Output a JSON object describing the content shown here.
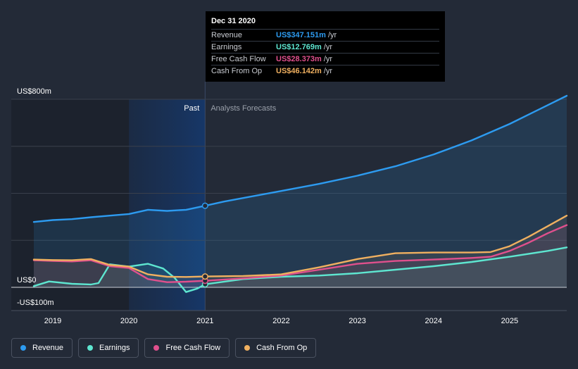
{
  "tooltip": {
    "date": "Dec 31 2020",
    "rows": [
      {
        "name": "Revenue",
        "value": "US$347.151m",
        "unit": "/yr",
        "color": "#2d9bf0"
      },
      {
        "name": "Earnings",
        "value": "US$12.769m",
        "unit": "/yr",
        "color": "#5ee6d0"
      },
      {
        "name": "Free Cash Flow",
        "value": "US$28.373m",
        "unit": "/yr",
        "color": "#e0508d"
      },
      {
        "name": "Cash From Op",
        "value": "US$46.142m",
        "unit": "/yr",
        "color": "#f0b060"
      }
    ]
  },
  "legend": [
    {
      "label": "Revenue",
      "color": "#2d9bf0"
    },
    {
      "label": "Earnings",
      "color": "#5ee6d0"
    },
    {
      "label": "Free Cash Flow",
      "color": "#e0508d"
    },
    {
      "label": "Cash From Op",
      "color": "#f0b060"
    }
  ],
  "chart_data": {
    "type": "line",
    "past_label": "Past",
    "forecast_label": "Analysts Forecasts",
    "y_labels": [
      "US$800m",
      "US$0",
      "-US$100m"
    ],
    "ylim": [
      -100,
      800
    ],
    "xlim": [
      2018.75,
      2025.75
    ],
    "x_ticks": [
      "2019",
      "2020",
      "2021",
      "2022",
      "2023",
      "2024",
      "2025"
    ],
    "x_tick_values": [
      2019,
      2020,
      2021,
      2022,
      2023,
      2024,
      2025
    ],
    "past_end": 2021.0,
    "highlight_start": 2020.0,
    "grid": true,
    "series": [
      {
        "name": "Revenue",
        "color": "#2d9bf0",
        "points": [
          [
            2018.75,
            278
          ],
          [
            2019.0,
            286
          ],
          [
            2019.25,
            290
          ],
          [
            2019.5,
            298
          ],
          [
            2019.75,
            305
          ],
          [
            2020.0,
            312
          ],
          [
            2020.25,
            330
          ],
          [
            2020.5,
            325
          ],
          [
            2020.75,
            330
          ],
          [
            2021.0,
            347
          ],
          [
            2021.25,
            365
          ],
          [
            2021.5,
            380
          ],
          [
            2021.75,
            395
          ],
          [
            2022.0,
            410
          ],
          [
            2022.5,
            440
          ],
          [
            2023.0,
            475
          ],
          [
            2023.5,
            515
          ],
          [
            2024.0,
            565
          ],
          [
            2024.5,
            625
          ],
          [
            2025.0,
            695
          ],
          [
            2025.5,
            775
          ],
          [
            2025.75,
            815
          ]
        ]
      },
      {
        "name": "Earnings",
        "color": "#5ee6d0",
        "points": [
          [
            2018.75,
            5
          ],
          [
            2018.95,
            25
          ],
          [
            2019.25,
            15
          ],
          [
            2019.5,
            12
          ],
          [
            2019.6,
            18
          ],
          [
            2019.75,
            98
          ],
          [
            2020.0,
            88
          ],
          [
            2020.25,
            100
          ],
          [
            2020.45,
            80
          ],
          [
            2020.6,
            40
          ],
          [
            2020.75,
            -20
          ],
          [
            2020.9,
            -5
          ],
          [
            2021.0,
            13
          ],
          [
            2021.5,
            35
          ],
          [
            2022.0,
            45
          ],
          [
            2022.5,
            50
          ],
          [
            2023.0,
            60
          ],
          [
            2023.5,
            75
          ],
          [
            2024.0,
            90
          ],
          [
            2024.5,
            108
          ],
          [
            2025.0,
            130
          ],
          [
            2025.5,
            155
          ],
          [
            2025.75,
            170
          ]
        ]
      },
      {
        "name": "Free Cash Flow",
        "color": "#e0508d",
        "points": [
          [
            2018.75,
            115
          ],
          [
            2019.0,
            112
          ],
          [
            2019.25,
            110
          ],
          [
            2019.5,
            115
          ],
          [
            2019.75,
            90
          ],
          [
            2020.0,
            82
          ],
          [
            2020.25,
            35
          ],
          [
            2020.5,
            22
          ],
          [
            2020.75,
            24
          ],
          [
            2021.0,
            28
          ],
          [
            2021.5,
            38
          ],
          [
            2022.0,
            50
          ],
          [
            2022.5,
            75
          ],
          [
            2023.0,
            100
          ],
          [
            2023.5,
            112
          ],
          [
            2024.0,
            118
          ],
          [
            2024.5,
            125
          ],
          [
            2024.75,
            130
          ],
          [
            2025.0,
            155
          ],
          [
            2025.25,
            190
          ],
          [
            2025.5,
            230
          ],
          [
            2025.75,
            265
          ]
        ]
      },
      {
        "name": "Cash From Op",
        "color": "#f0b060",
        "points": [
          [
            2018.75,
            118
          ],
          [
            2019.0,
            116
          ],
          [
            2019.25,
            115
          ],
          [
            2019.5,
            120
          ],
          [
            2019.75,
            95
          ],
          [
            2020.0,
            88
          ],
          [
            2020.25,
            55
          ],
          [
            2020.5,
            45
          ],
          [
            2020.75,
            44
          ],
          [
            2021.0,
            46
          ],
          [
            2021.5,
            48
          ],
          [
            2022.0,
            55
          ],
          [
            2022.5,
            85
          ],
          [
            2023.0,
            120
          ],
          [
            2023.5,
            145
          ],
          [
            2024.0,
            148
          ],
          [
            2024.5,
            148
          ],
          [
            2024.75,
            150
          ],
          [
            2025.0,
            175
          ],
          [
            2025.25,
            215
          ],
          [
            2025.5,
            260
          ],
          [
            2025.75,
            305
          ]
        ]
      }
    ],
    "markers_at": 2021.0
  }
}
